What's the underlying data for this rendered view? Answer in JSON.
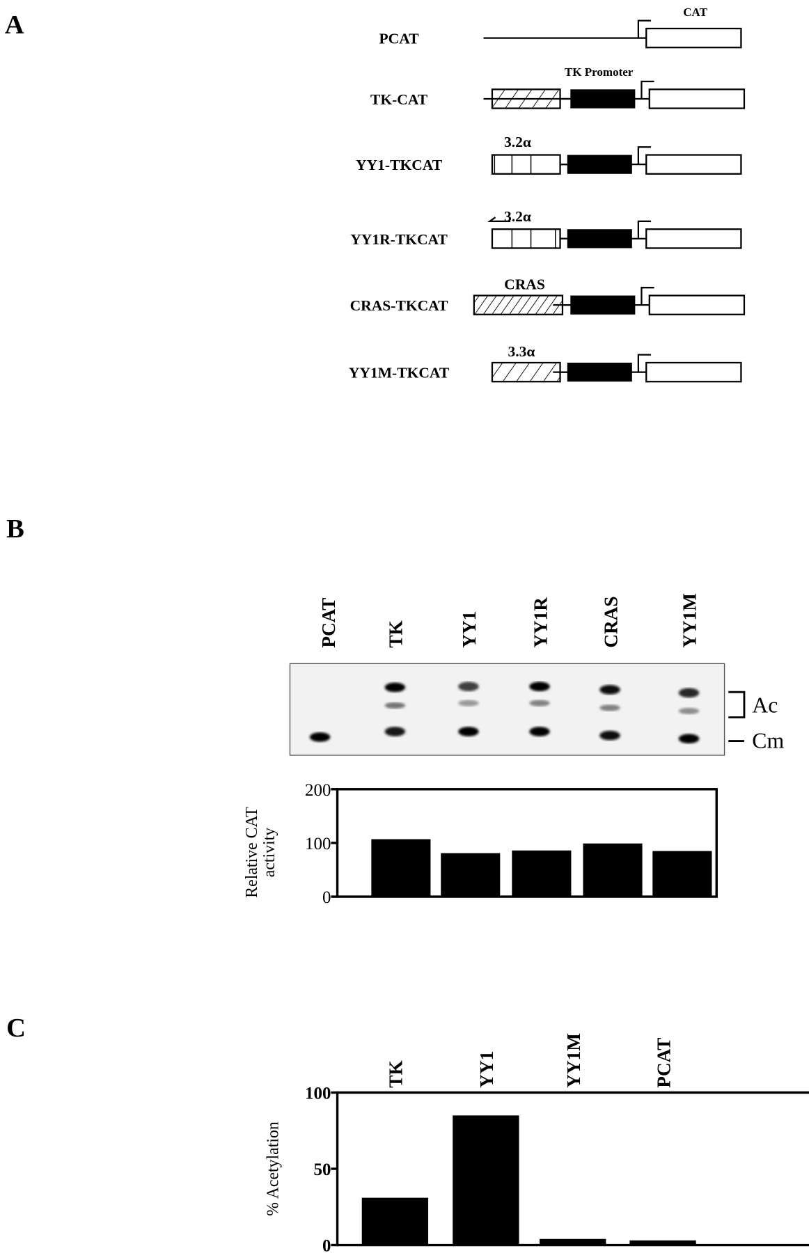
{
  "panels": {
    "a": "A",
    "b": "B",
    "c": "C"
  },
  "constructs": {
    "cat_label": "CAT",
    "tk_promoter_label": "TK Promoter",
    "rows": [
      {
        "name": "PCAT",
        "insert": "none",
        "tk": false,
        "annotation": ""
      },
      {
        "name": "TK-CAT",
        "insert": "none",
        "tk": true,
        "annotation": ""
      },
      {
        "name": "YY1-TKCAT",
        "insert": "boxes",
        "tk": true,
        "annotation": "3.2α"
      },
      {
        "name": "YY1R-TKCAT",
        "insert": "boxes-reverse",
        "tk": true,
        "annotation": "3.2α"
      },
      {
        "name": "CRAS-TKCAT",
        "insert": "hatched-long",
        "tk": true,
        "annotation": "CRAS"
      },
      {
        "name": "YY1M-TKCAT",
        "insert": "hatched",
        "tk": true,
        "annotation": "3.3α"
      }
    ]
  },
  "gel": {
    "lanes": [
      "PCAT",
      "TK",
      "YY1",
      "YY1R",
      "CRAS",
      "YY1M"
    ],
    "ac_label": "Ac",
    "cm_label": "Cm"
  },
  "chart_data": [
    {
      "type": "bar",
      "categories": [
        "TK",
        "YY1",
        "YY1R",
        "CRAS",
        "YY1M"
      ],
      "values": [
        107,
        81,
        86,
        99,
        85
      ],
      "ylabel": [
        "Relative CAT",
        "activity"
      ],
      "ylim": [
        0,
        200
      ],
      "yticks": [
        "0",
        "100",
        "200"
      ],
      "bar_color": "#000000"
    },
    {
      "type": "bar",
      "categories": [
        "TK",
        "YY1",
        "YY1M",
        "PCAT"
      ],
      "values": [
        31,
        85,
        4,
        3
      ],
      "ylabel": "% Acetylation",
      "ylim": [
        0,
        100
      ],
      "yticks": [
        "0",
        "50",
        "100"
      ],
      "bar_color": "#000000"
    }
  ]
}
